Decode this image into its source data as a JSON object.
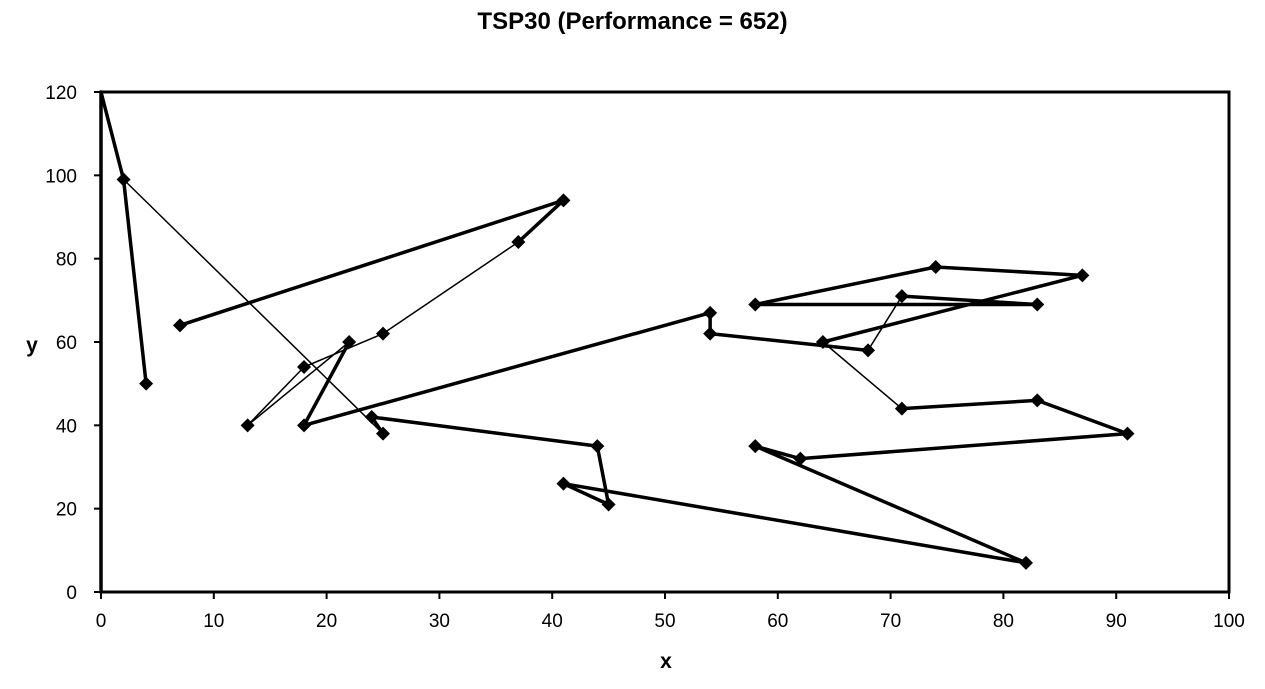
{
  "chart_data": {
    "type": "line",
    "title": "TSP30 (Performance  = 652)",
    "xlabel": "x",
    "ylabel": "y",
    "xlim": [
      0,
      100
    ],
    "ylim": [
      0,
      120
    ],
    "xticks": [
      "0",
      "10",
      "20",
      "30",
      "40",
      "50",
      "60",
      "70",
      "80",
      "90",
      "100"
    ],
    "yticks": [
      "0",
      "20",
      "40",
      "60",
      "80",
      "100",
      "120"
    ],
    "grid": false,
    "legend": "none",
    "colors": {
      "line": "#000000",
      "marker": "#000000",
      "frame": "#000000",
      "background": "#ffffff"
    },
    "marker": "diamond",
    "tour": [
      {
        "x": 0,
        "y": 0,
        "w": "bold"
      },
      {
        "x": 0,
        "y": 120,
        "w": "bold"
      },
      {
        "x": 2,
        "y": 99,
        "w": "bold"
      },
      {
        "x": 4,
        "y": 50,
        "w": "thin"
      },
      {
        "x": 2,
        "y": 99,
        "w": "thin"
      },
      {
        "x": 25,
        "y": 38,
        "w": "bold"
      },
      {
        "x": 24,
        "y": 42,
        "w": "bold"
      },
      {
        "x": 44,
        "y": 35,
        "w": "bold"
      },
      {
        "x": 45,
        "y": 21,
        "w": "bold"
      },
      {
        "x": 41,
        "y": 26,
        "w": "bold"
      },
      {
        "x": 82,
        "y": 7,
        "w": "bold"
      },
      {
        "x": 58,
        "y": 35,
        "w": "bold"
      },
      {
        "x": 62,
        "y": 32,
        "w": "bold"
      },
      {
        "x": 91,
        "y": 38,
        "w": "bold"
      },
      {
        "x": 83,
        "y": 46,
        "w": "bold"
      },
      {
        "x": 71,
        "y": 44,
        "w": "thin"
      },
      {
        "x": 64,
        "y": 60,
        "w": "bold"
      },
      {
        "x": 87,
        "y": 76,
        "w": "bold"
      },
      {
        "x": 74,
        "y": 78,
        "w": "bold"
      },
      {
        "x": 58,
        "y": 69,
        "w": "bold"
      },
      {
        "x": 83,
        "y": 69,
        "w": "bold"
      },
      {
        "x": 71,
        "y": 71,
        "w": "thin"
      },
      {
        "x": 68,
        "y": 58,
        "w": "bold"
      },
      {
        "x": 54,
        "y": 62,
        "w": "bold"
      },
      {
        "x": 54,
        "y": 67,
        "w": "bold"
      },
      {
        "x": 18,
        "y": 40,
        "w": "bold"
      },
      {
        "x": 22,
        "y": 60,
        "w": "thin"
      },
      {
        "x": 13,
        "y": 40,
        "w": "thin"
      },
      {
        "x": 18,
        "y": 54,
        "w": "thin"
      },
      {
        "x": 25,
        "y": 62,
        "w": "thin"
      },
      {
        "x": 37,
        "y": 84,
        "w": "bold"
      },
      {
        "x": 41,
        "y": 94,
        "w": "bold"
      },
      {
        "x": 7,
        "y": 64,
        "w": null
      }
    ],
    "cities": [
      {
        "x": 2,
        "y": 99
      },
      {
        "x": 4,
        "y": 50
      },
      {
        "x": 7,
        "y": 64
      },
      {
        "x": 41,
        "y": 94
      },
      {
        "x": 37,
        "y": 84
      },
      {
        "x": 25,
        "y": 62
      },
      {
        "x": 22,
        "y": 60
      },
      {
        "x": 18,
        "y": 54
      },
      {
        "x": 13,
        "y": 40
      },
      {
        "x": 18,
        "y": 40
      },
      {
        "x": 25,
        "y": 38
      },
      {
        "x": 24,
        "y": 42
      },
      {
        "x": 44,
        "y": 35
      },
      {
        "x": 45,
        "y": 21
      },
      {
        "x": 41,
        "y": 26
      },
      {
        "x": 82,
        "y": 7
      },
      {
        "x": 58,
        "y": 35
      },
      {
        "x": 62,
        "y": 32
      },
      {
        "x": 91,
        "y": 38
      },
      {
        "x": 83,
        "y": 46
      },
      {
        "x": 71,
        "y": 44
      },
      {
        "x": 64,
        "y": 60
      },
      {
        "x": 68,
        "y": 58
      },
      {
        "x": 71,
        "y": 71
      },
      {
        "x": 87,
        "y": 76
      },
      {
        "x": 74,
        "y": 78
      },
      {
        "x": 58,
        "y": 69
      },
      {
        "x": 83,
        "y": 69
      },
      {
        "x": 54,
        "y": 62
      },
      {
        "x": 54,
        "y": 67
      }
    ]
  }
}
